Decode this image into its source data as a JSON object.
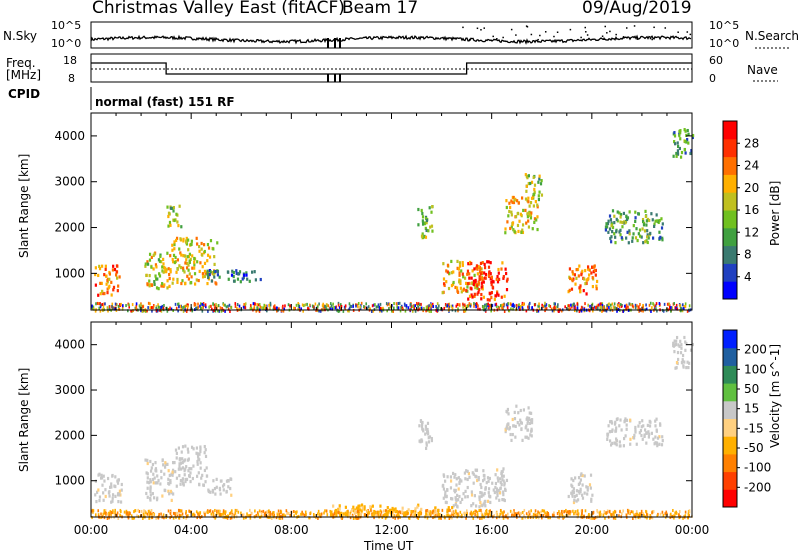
{
  "header": {
    "station": "Christmas Valley East (fitACF)",
    "beam": "Beam 17",
    "date": "09/Aug/2019"
  },
  "panels": {
    "nsky": {
      "left_label": "N.Sky",
      "ticks_left": [
        "10^5",
        "10^0"
      ],
      "right_label": "N.Search",
      "ticks_right": [
        "10^5",
        "10^0"
      ]
    },
    "freq": {
      "left_label_line1": "Freq.",
      "left_label_line2": "[MHz]",
      "ticks_left": [
        "18",
        "8"
      ],
      "right_label": "Nave",
      "ticks_right": [
        "60",
        "0"
      ]
    },
    "cpid": {
      "label": "CPID",
      "value": "normal (fast) 151 RF"
    }
  },
  "colors": {
    "power_scale": [
      "#0000ff",
      "#2040c0",
      "#3a7a70",
      "#40a040",
      "#70c020",
      "#c0c020",
      "#ffb000",
      "#ff7000",
      "#ff3000",
      "#ff0000"
    ],
    "velocity_scale": [
      "#ff0000",
      "#ff4000",
      "#ff8000",
      "#ffb000",
      "#ffd080",
      "#c8c8c8",
      "#60c040",
      "#2e8b57",
      "#1f5fa0",
      "#0020ff"
    ],
    "ground_scatter": "#c8c8c8"
  },
  "chart_data": [
    {
      "type": "heatmap",
      "title": "Power",
      "ylabel": "Slant Range [km]",
      "xlabel": "",
      "x_ticks": [
        "00:00",
        "04:00",
        "08:00",
        "12:00",
        "16:00",
        "20:00",
        "00:00"
      ],
      "y_ticks": [
        1000,
        2000,
        3000,
        4000
      ],
      "ylim": [
        200,
        4500
      ],
      "xlim_hours": [
        0,
        24
      ],
      "colorbar": {
        "label": "Power [dB]",
        "ticks": [
          "28",
          "24",
          "20",
          "16",
          "12",
          "8",
          "4"
        ],
        "range": [
          0,
          30
        ]
      },
      "regions": [
        {
          "t0": 0.1,
          "t1": 1.1,
          "r0": 550,
          "r1": 1200,
          "v": 22
        },
        {
          "t0": 2.1,
          "t1": 3.2,
          "r0": 700,
          "r1": 1500,
          "v": 17
        },
        {
          "t0": 3.0,
          "t1": 3.6,
          "r0": 2000,
          "r1": 2500,
          "v": 14
        },
        {
          "t0": 3.2,
          "t1": 5.0,
          "r0": 800,
          "r1": 1800,
          "v": 18
        },
        {
          "t0": 4.5,
          "t1": 6.8,
          "r0": 850,
          "r1": 1100,
          "v": 6
        },
        {
          "t0": 13.0,
          "t1": 13.6,
          "r0": 1800,
          "r1": 2500,
          "v": 13
        },
        {
          "t0": 14.0,
          "t1": 15.6,
          "r0": 600,
          "r1": 1300,
          "v": 19
        },
        {
          "t0": 15.0,
          "t1": 16.6,
          "r0": 450,
          "r1": 1300,
          "v": 26
        },
        {
          "t0": 16.5,
          "t1": 17.8,
          "r0": 1900,
          "r1": 2700,
          "v": 18
        },
        {
          "t0": 17.3,
          "t1": 18.0,
          "r0": 2600,
          "r1": 3200,
          "v": 14
        },
        {
          "t0": 19.0,
          "t1": 20.2,
          "r0": 550,
          "r1": 1200,
          "v": 22
        },
        {
          "t0": 20.5,
          "t1": 22.8,
          "r0": 1700,
          "r1": 2400,
          "v": 11
        },
        {
          "t0": 23.2,
          "t1": 24.0,
          "r0": 3500,
          "r1": 4200,
          "v": 10
        }
      ]
    },
    {
      "type": "heatmap",
      "title": "Velocity",
      "ylabel": "Slant Range [km]",
      "xlabel": "Time UT",
      "x_ticks": [
        "00:00",
        "04:00",
        "08:00",
        "12:00",
        "16:00",
        "20:00",
        "00:00"
      ],
      "y_ticks": [
        1000,
        2000,
        3000,
        4000
      ],
      "ylim": [
        200,
        4500
      ],
      "xlim_hours": [
        0,
        24
      ],
      "colorbar": {
        "label": "Velocity [m s^-1]",
        "ticks": [
          "200",
          "100",
          "50",
          "15",
          "-15",
          "-50",
          "-100",
          "-200"
        ],
        "range": [
          -250,
          250
        ]
      },
      "regions": [
        {
          "t0": 0.1,
          "t1": 1.2,
          "r0": 550,
          "r1": 1200,
          "v": 0
        },
        {
          "t0": 2.1,
          "t1": 3.3,
          "r0": 600,
          "r1": 1500,
          "v": 0
        },
        {
          "t0": 3.3,
          "t1": 4.6,
          "r0": 900,
          "r1": 1800,
          "v": 30
        },
        {
          "t0": 4.6,
          "t1": 5.6,
          "r0": 700,
          "r1": 1100,
          "v": 0
        },
        {
          "t0": 13.0,
          "t1": 13.6,
          "r0": 1700,
          "r1": 2400,
          "v": 20
        },
        {
          "t0": 14.0,
          "t1": 16.6,
          "r0": 450,
          "r1": 1300,
          "v": 0
        },
        {
          "t0": 16.5,
          "t1": 17.6,
          "r0": 1900,
          "r1": 2700,
          "v": 0
        },
        {
          "t0": 19.0,
          "t1": 20.0,
          "r0": 550,
          "r1": 1200,
          "v": 0
        },
        {
          "t0": 20.5,
          "t1": 22.8,
          "r0": 1800,
          "r1": 2400,
          "v": 0
        },
        {
          "t0": 23.2,
          "t1": 24.0,
          "r0": 3500,
          "r1": 4200,
          "v": 0
        },
        {
          "t0": 9.5,
          "t1": 14.5,
          "r0": 250,
          "r1": 500,
          "v": -60
        }
      ]
    }
  ]
}
